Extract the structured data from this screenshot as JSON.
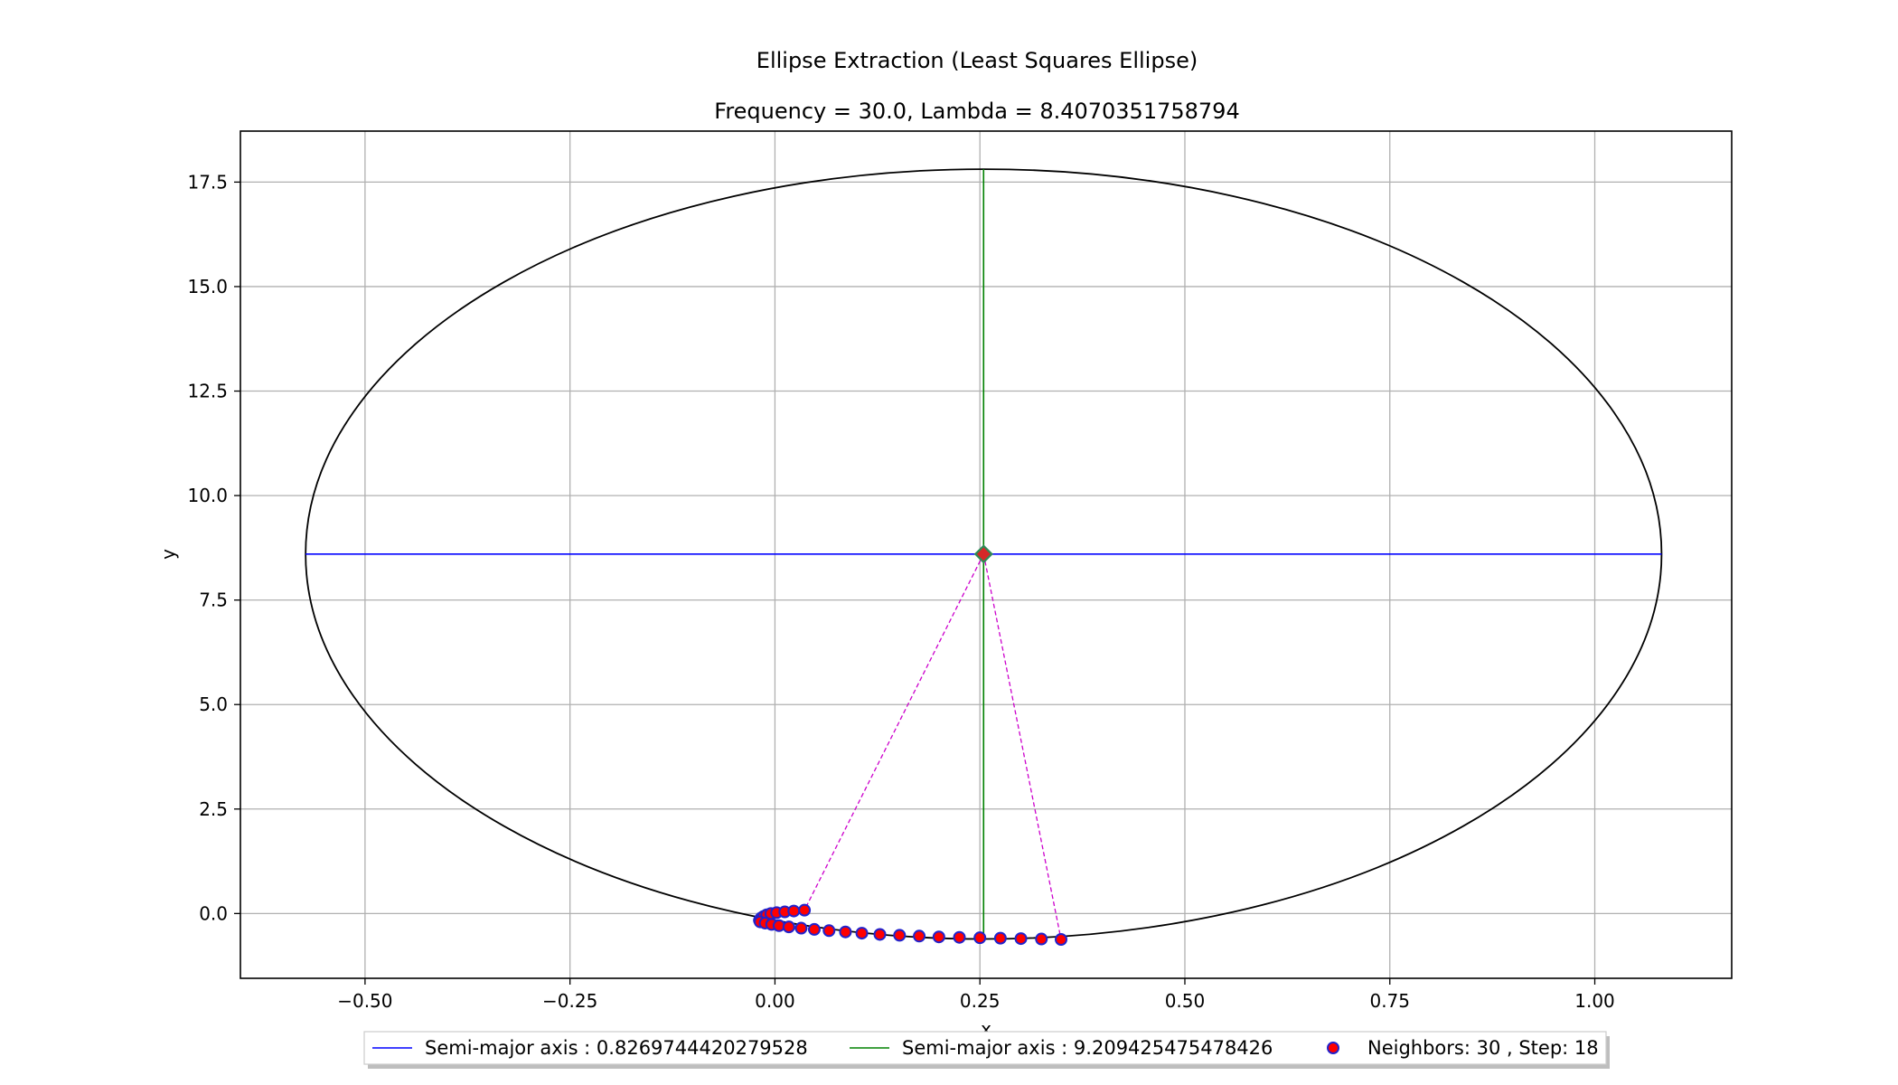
{
  "chart_data": {
    "type": "scatter",
    "title": "Ellipse Extraction (Least Squares Ellipse)",
    "subtitle": "Frequency = 30.0, Lambda = 8.4070351758794",
    "xlabel": "x",
    "ylabel": "y",
    "xlim": [
      -0.652,
      1.167
    ],
    "ylim": [
      -1.55,
      18.72
    ],
    "x_ticks": [
      -0.5,
      -0.25,
      0.0,
      0.25,
      0.5,
      0.75,
      1.0
    ],
    "x_tick_labels": [
      "−0.50",
      "−0.25",
      "0.00",
      "0.25",
      "0.50",
      "0.75",
      "1.00"
    ],
    "y_ticks": [
      0.0,
      2.5,
      5.0,
      7.5,
      10.0,
      12.5,
      15.0,
      17.5
    ],
    "y_tick_labels": [
      "0.0",
      "2.5",
      "5.0",
      "7.5",
      "10.0",
      "12.5",
      "15.0",
      "17.5"
    ],
    "grid": true,
    "ellipse": {
      "center": [
        0.2545,
        8.6
      ],
      "semi_axis_x": 0.8269744420279528,
      "semi_axis_y": 9.209425475478426,
      "color": "#000000"
    },
    "axis_lines": [
      {
        "name": "Semi-major axis : 0.8269744420279528",
        "color": "#0000ff",
        "x": [
          -0.5725,
          1.0815
        ],
        "y": [
          8.6,
          8.6
        ]
      },
      {
        "name": "Semi-major axis : 9.209425475478426",
        "color": "#008000",
        "x": [
          0.2545,
          0.2545
        ],
        "y": [
          -0.6094,
          17.8094
        ]
      }
    ],
    "center_marker": {
      "x": 0.2545,
      "y": 8.6,
      "face_color": "#d62728",
      "edge_color": "#2e8b57"
    },
    "dashed_lines": {
      "color": "#cc00cc",
      "from": [
        0.2545,
        8.6
      ],
      "to": [
        [
          0.036,
          0.08
        ],
        [
          0.349,
          -0.62
        ]
      ]
    },
    "series": [
      {
        "name": "Neighbors: 30 , Step: 18",
        "marker_face": "#ff0000",
        "marker_edge": "#2222cc",
        "x": [
          -0.019,
          -0.017,
          -0.014,
          -0.01,
          -0.005,
          0.002,
          0.012,
          0.023,
          0.036,
          -0.018,
          -0.012,
          -0.004,
          0.005,
          0.017,
          0.032,
          0.048,
          0.066,
          0.086,
          0.106,
          0.128,
          0.152,
          0.176,
          0.2,
          0.225,
          0.25,
          0.275,
          0.3,
          0.325,
          0.349
        ],
        "y": [
          -0.16,
          -0.11,
          -0.07,
          -0.03,
          0.0,
          0.02,
          0.04,
          0.06,
          0.08,
          -0.2,
          -0.23,
          -0.26,
          -0.29,
          -0.32,
          -0.35,
          -0.38,
          -0.41,
          -0.44,
          -0.47,
          -0.5,
          -0.52,
          -0.54,
          -0.56,
          -0.57,
          -0.58,
          -0.59,
          -0.6,
          -0.61,
          -0.62
        ]
      }
    ],
    "legend": {
      "placement": "bottom-center",
      "entries": [
        {
          "label": "Semi-major axis : 0.8269744420279528",
          "kind": "line",
          "color": "#0000ff"
        },
        {
          "label": "Semi-major axis : 9.209425475478426",
          "kind": "line",
          "color": "#008000"
        },
        {
          "label": "Neighbors: 30 , Step: 18",
          "kind": "marker",
          "color": "#ff0000",
          "edge": "#2222cc"
        }
      ]
    }
  }
}
